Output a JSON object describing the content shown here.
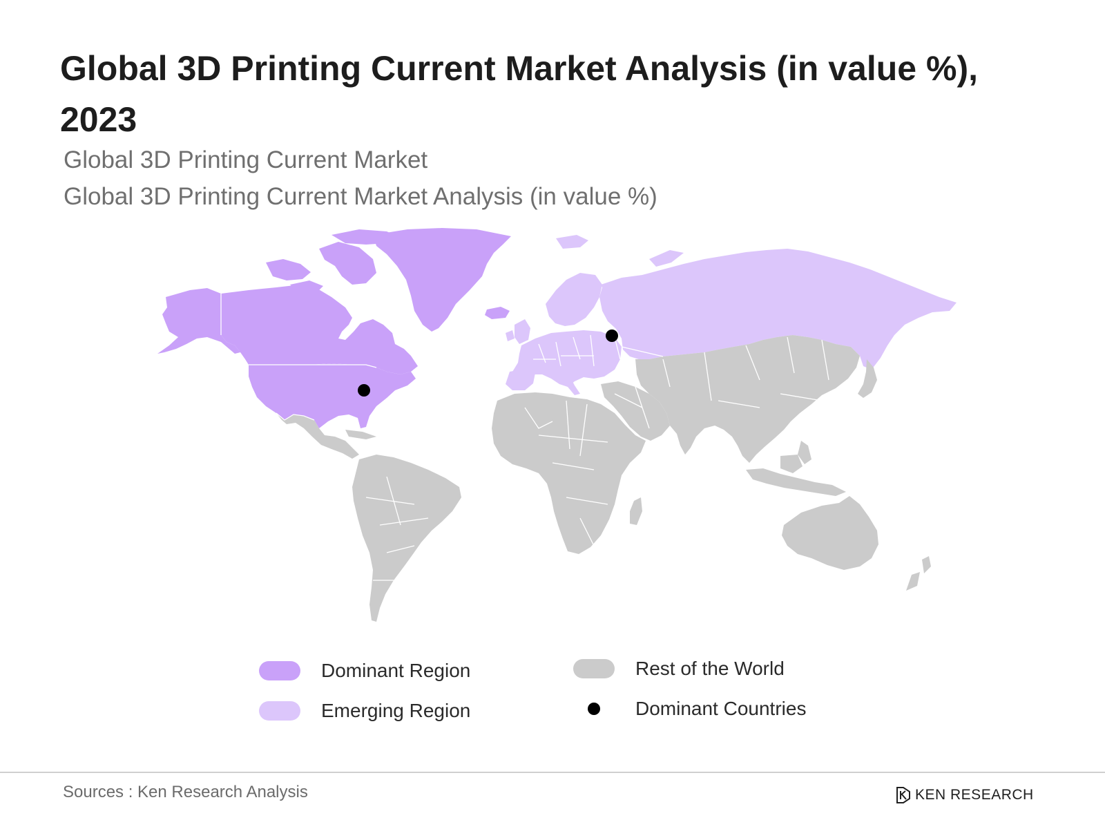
{
  "title": "Global 3D Printing Current Market Analysis (in value %), 2023",
  "subtitle_1": "Global 3D Printing Current Market",
  "subtitle_2": "Global 3D Printing Current Market Analysis (in value %)",
  "colors": {
    "dominant": "#c9a1f9",
    "emerging": "#dcc6fb",
    "rest": "#cbcbcb",
    "dominant_country": "#000000"
  },
  "legend": [
    {
      "label": "Dominant Region",
      "swatch": "dominant"
    },
    {
      "label": "Emerging Region",
      "swatch": "emerging"
    },
    {
      "label": "Rest of the World",
      "swatch": "rest"
    },
    {
      "label": "Dominant Countries",
      "swatch": "dot"
    }
  ],
  "regions": {
    "dominant": [
      "North America",
      "Greenland"
    ],
    "emerging": [
      "Europe",
      "Russia"
    ],
    "rest": [
      "Latin America",
      "Africa",
      "Middle East",
      "Asia",
      "Oceania"
    ]
  },
  "dominant_countries": [
    "United States",
    "Russia"
  ],
  "footer": {
    "source": "Sources : Ken Research Analysis",
    "brand": "KEN RESEARCH"
  }
}
